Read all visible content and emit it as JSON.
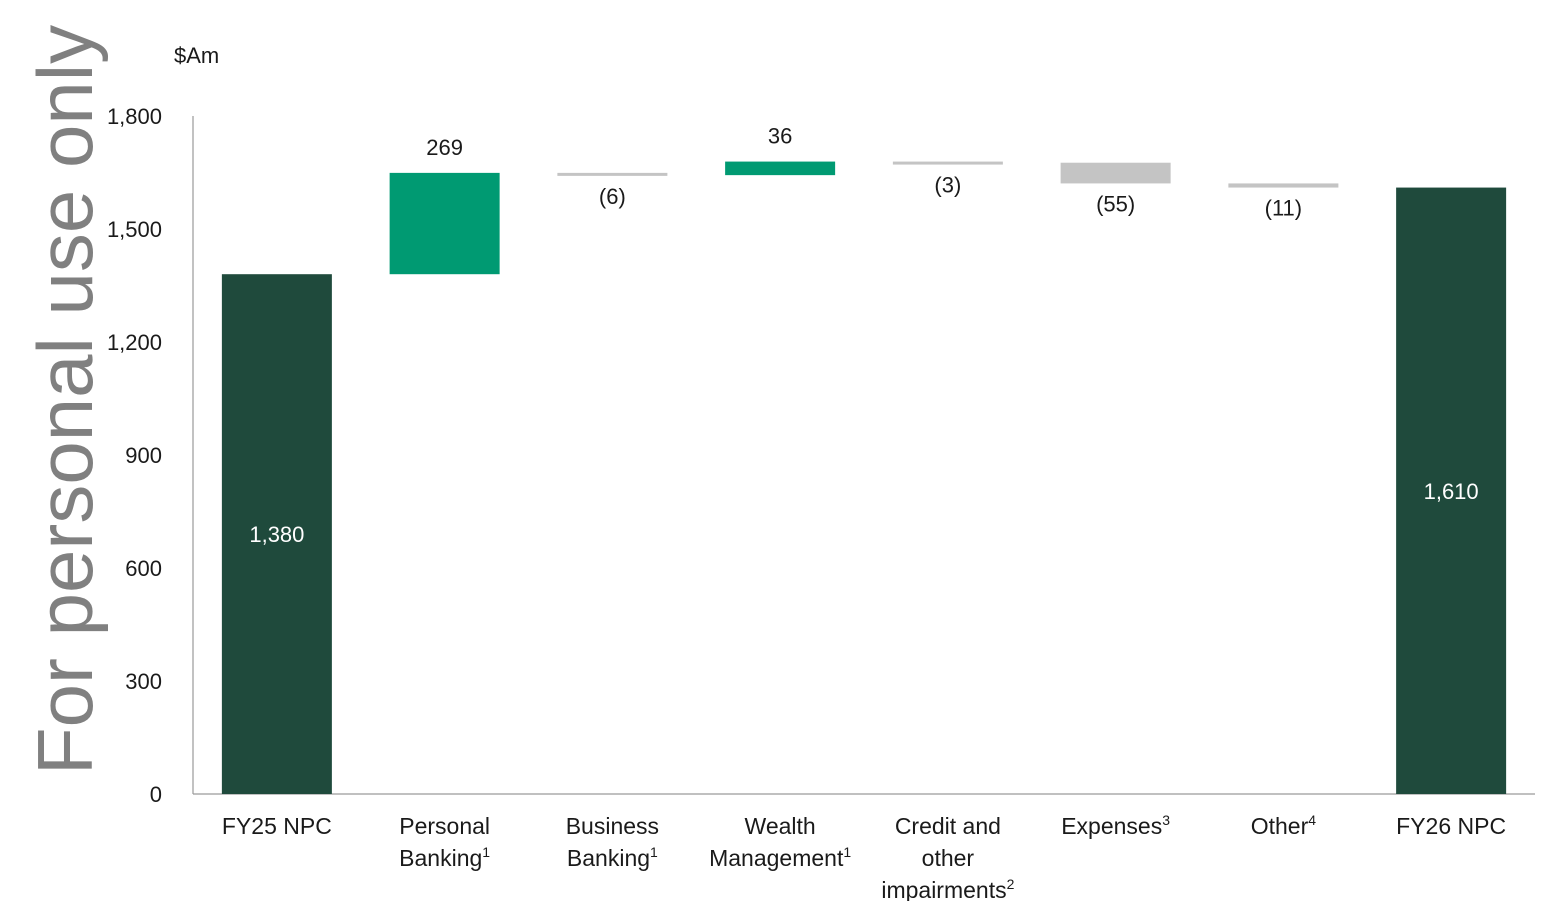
{
  "watermark": "For personal use only",
  "chart_data": {
    "type": "waterfall",
    "unit_label": "$Am",
    "yticks": [
      "0",
      "300",
      "600",
      "900",
      "1,200",
      "1,500",
      "1,800"
    ],
    "ytick_values": [
      0,
      300,
      600,
      900,
      1200,
      1500,
      1800
    ],
    "ylim": [
      0,
      1800
    ],
    "categories": [
      {
        "lines": [
          "FY25 NPC"
        ],
        "sup": ""
      },
      {
        "lines": [
          "Personal",
          "Banking"
        ],
        "sup": "1"
      },
      {
        "lines": [
          "Business",
          "Banking"
        ],
        "sup": "1"
      },
      {
        "lines": [
          "Wealth",
          "Management"
        ],
        "sup": "1"
      },
      {
        "lines": [
          "Credit and",
          "other",
          "impairments"
        ],
        "sup": "2"
      },
      {
        "lines": [
          "Expenses"
        ],
        "sup": "3"
      },
      {
        "lines": [
          "Other"
        ],
        "sup": "4"
      },
      {
        "lines": [
          "FY26 NPC"
        ],
        "sup": ""
      }
    ],
    "steps": [
      {
        "kind": "total",
        "value": 1380,
        "label": "1,380"
      },
      {
        "kind": "increase",
        "value": 269,
        "label": "269"
      },
      {
        "kind": "decrease",
        "value": -6,
        "label": "(6)"
      },
      {
        "kind": "increase",
        "value": 36,
        "label": "36"
      },
      {
        "kind": "decrease",
        "value": -3,
        "label": "(3)"
      },
      {
        "kind": "decrease",
        "value": -55,
        "label": "(55)"
      },
      {
        "kind": "decrease",
        "value": -11,
        "label": "(11)"
      },
      {
        "kind": "total",
        "value": 1610,
        "label": "1,610"
      }
    ],
    "colors": {
      "total": "#1f4a3c",
      "increase": "#009a72",
      "decrease": "#c4c4c4",
      "axis": "#9a9a9a"
    }
  }
}
